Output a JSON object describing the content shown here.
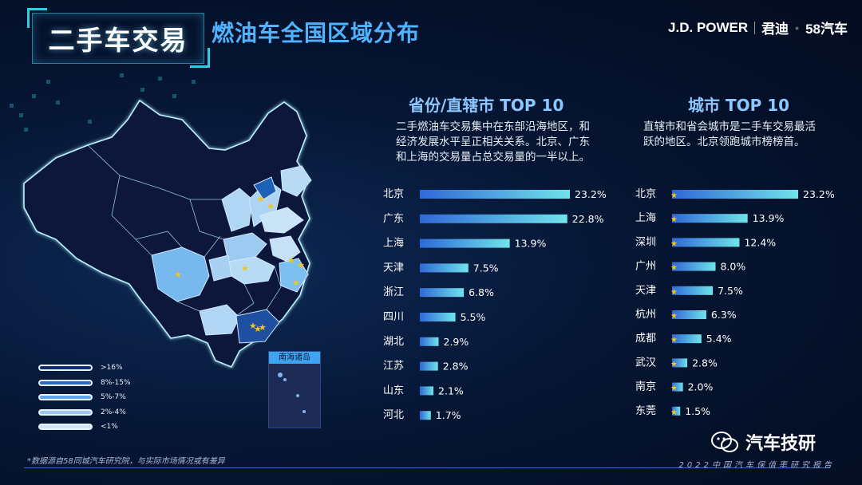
{
  "header": {
    "title": "二手车交易",
    "subtitle": "燃油车全国区域分布",
    "brand_jdp": "J.D. POWER",
    "brand_jundi": "君迪",
    "brand_58": "58汽车"
  },
  "legend": {
    "items": [
      ">16%",
      "8%-15%",
      "5%-7%",
      "2%-4%",
      "<1%"
    ]
  },
  "map": {
    "inset_label": "南海诸岛"
  },
  "province_panel": {
    "title": "省份/直辖市 TOP 10",
    "desc_lines": [
      "二手燃油车交易集中在东部沿海地区，和",
      "经济发展水平呈正相关关系。北京、广东",
      "和上海的交易量占总交易量的一半以上。"
    ]
  },
  "city_panel": {
    "title": "城市 TOP 10",
    "desc_lines": [
      "直辖市和省会城市是二手车交易最活",
      "跃的地区。北京领跑城市榜榜首。"
    ]
  },
  "chart_data": [
    {
      "type": "bar",
      "orientation": "horizontal",
      "title": "省份/直辖市 TOP 10",
      "categories": [
        "北京",
        "广东",
        "上海",
        "天津",
        "浙江",
        "四川",
        "湖北",
        "江苏",
        "山东",
        "河北"
      ],
      "values": [
        23.2,
        22.8,
        13.9,
        7.5,
        6.8,
        5.5,
        2.9,
        2.8,
        2.1,
        1.7
      ],
      "value_labels": [
        "23.2%",
        "22.8%",
        "13.9%",
        "7.5%",
        "6.8%",
        "5.5%",
        "2.9%",
        "2.8%",
        "2.1%",
        "1.7%"
      ],
      "xlim": [
        0,
        23.2
      ],
      "grid": false
    },
    {
      "type": "bar",
      "orientation": "horizontal",
      "title": "城市 TOP 10",
      "categories": [
        "北京",
        "上海",
        "深圳",
        "广州",
        "天津",
        "杭州",
        "成都",
        "武汉",
        "南京",
        "东莞"
      ],
      "values": [
        23.2,
        13.9,
        12.4,
        8.0,
        7.5,
        6.3,
        5.4,
        2.8,
        2.0,
        1.5
      ],
      "value_labels": [
        "23.2%",
        "13.9%",
        "12.4%",
        "8.0%",
        "7.5%",
        "6.3%",
        "5.4%",
        "2.8%",
        "2.0%",
        "1.5%"
      ],
      "xlim": [
        0,
        23.2
      ],
      "grid": false
    }
  ],
  "footer": {
    "footnote": "*数据源自58同城汽车研究院，与实际市场情况或有差异",
    "report": "2022中国汽车保值率研究报告",
    "wechat": "汽车技研"
  },
  "colors": {
    "bar_start": "#2f68d8",
    "bar_end": "#6fe4ea",
    "title_blue": "#4fb3ff",
    "star": "#f5c518"
  }
}
